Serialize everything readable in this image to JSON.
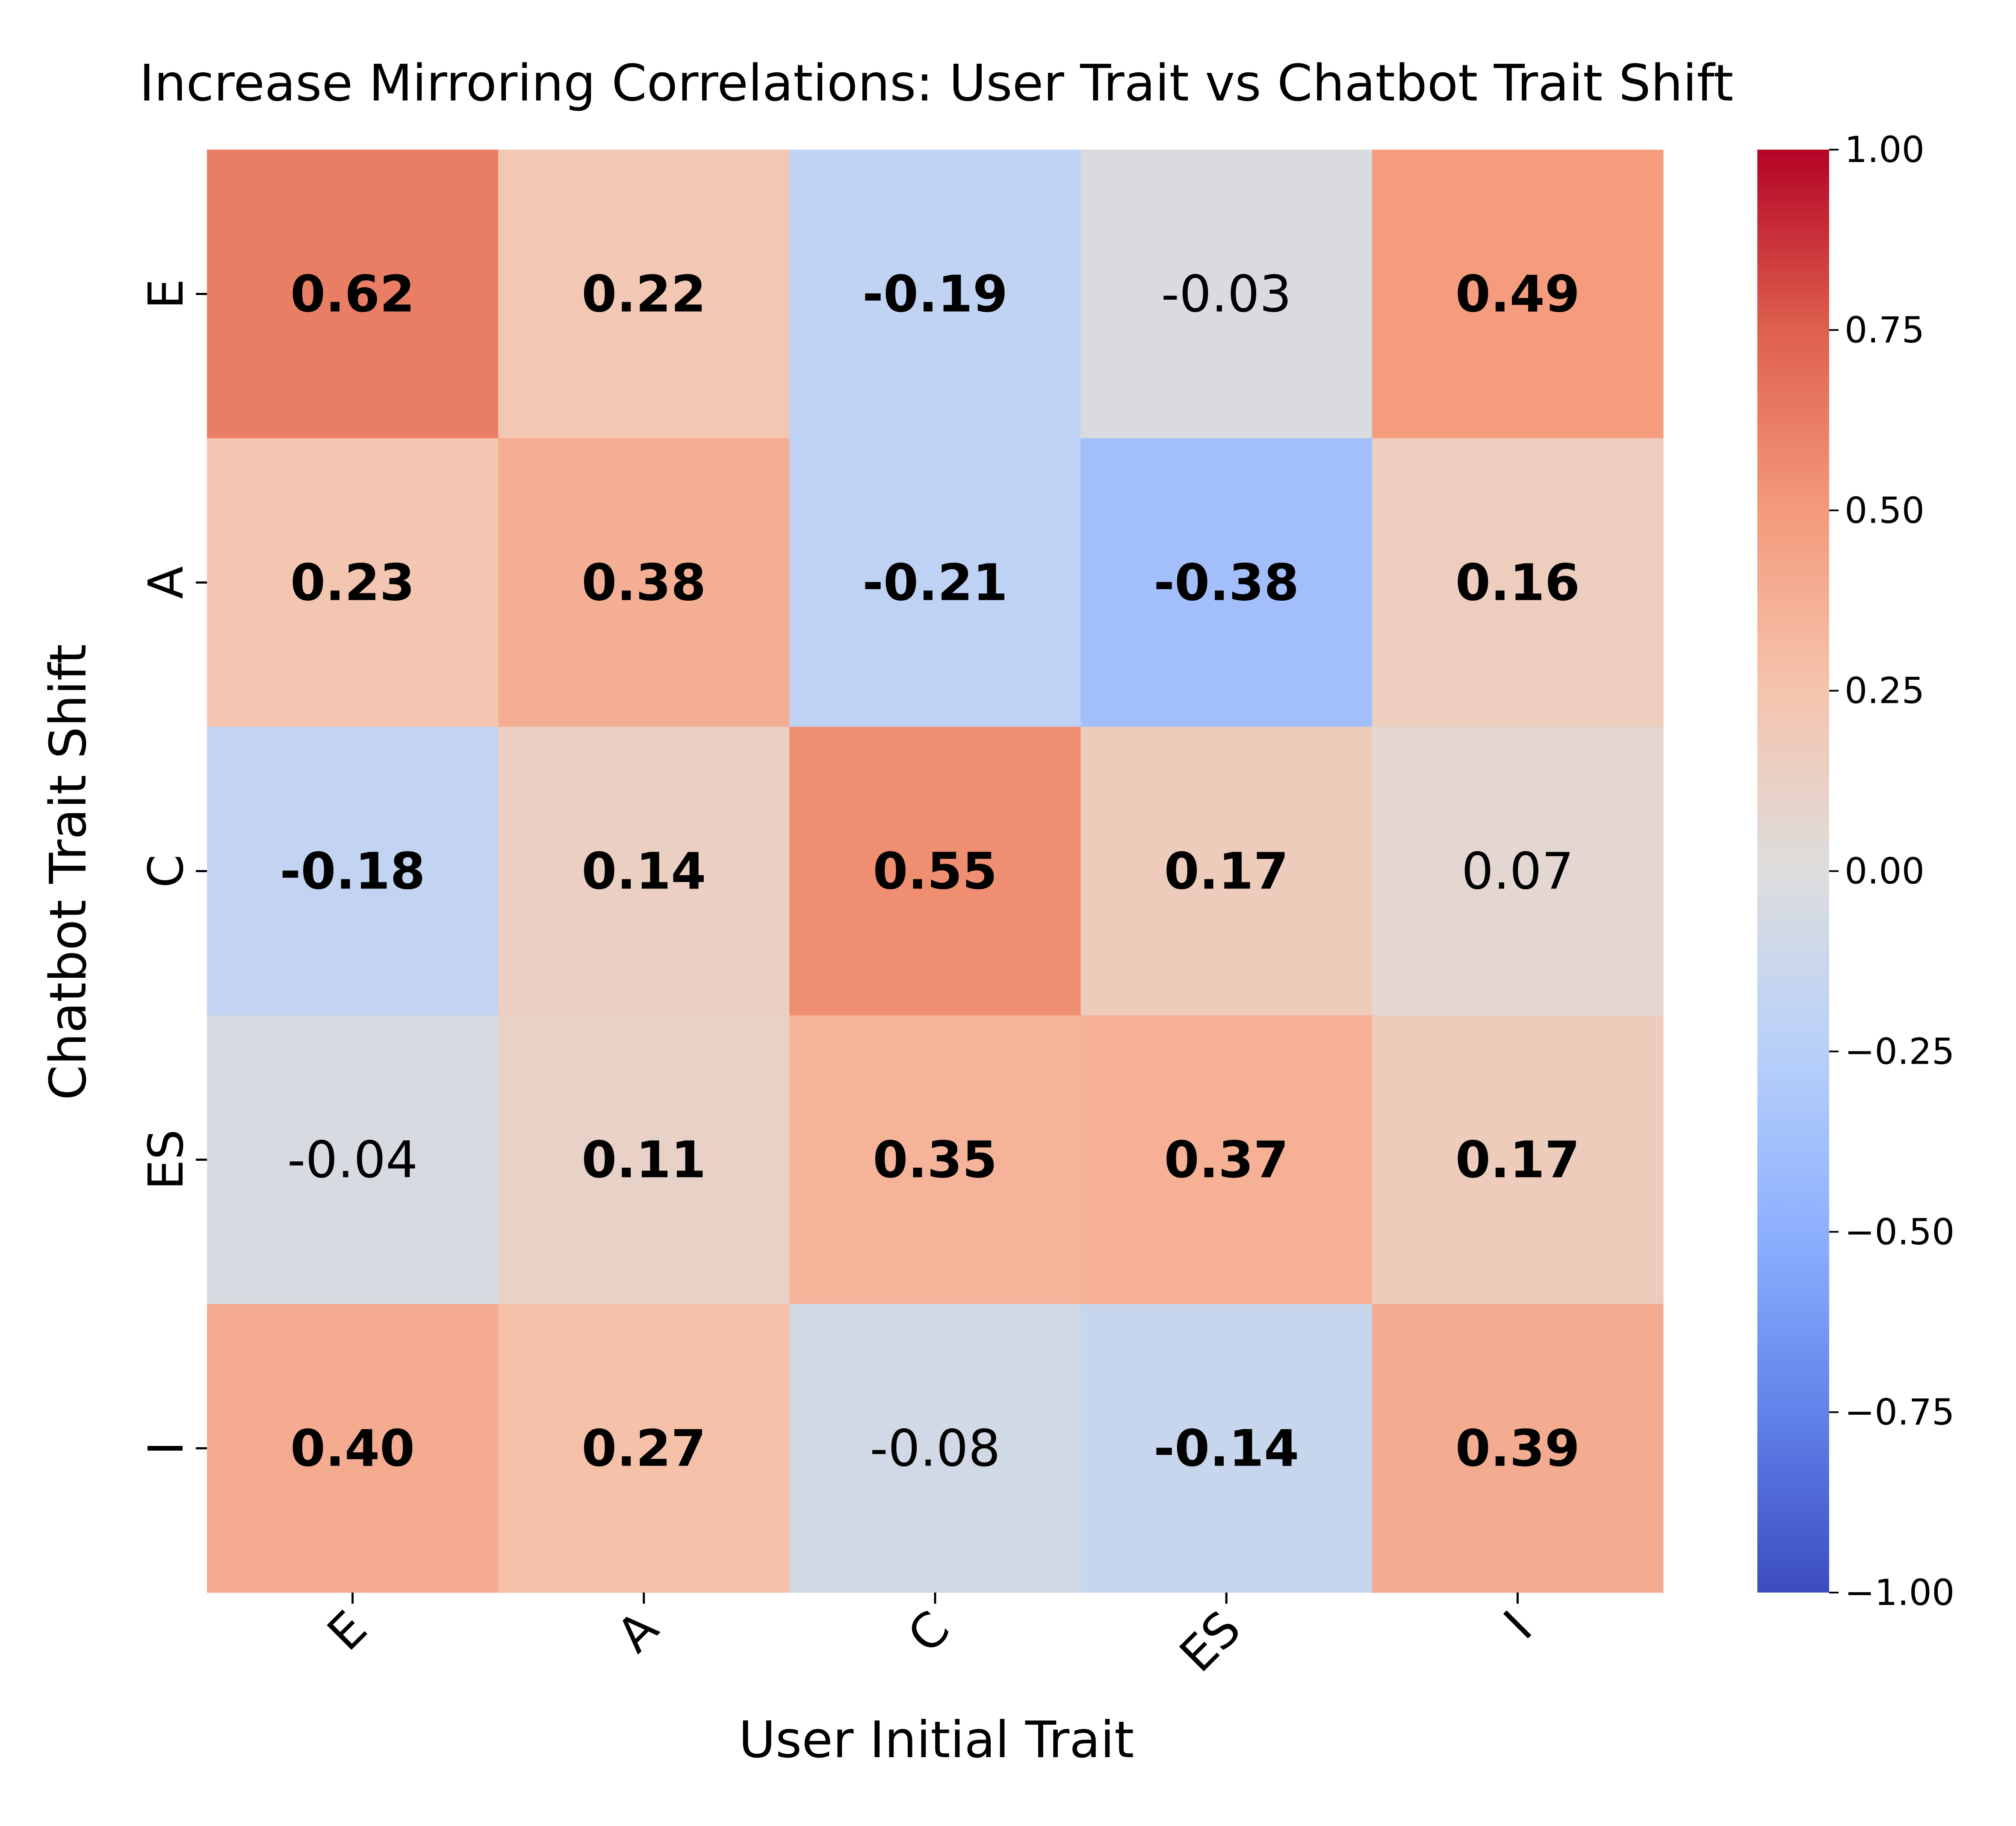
{
  "chart_data": {
    "type": "heatmap",
    "title": "Increase Mirroring Correlations: User Trait vs Chatbot Trait Shift",
    "xlabel": "User Initial Trait",
    "ylabel": "Chatbot Trait Shift",
    "x_categories": [
      "E",
      "A",
      "C",
      "ES",
      "I"
    ],
    "y_categories": [
      "E",
      "A",
      "C",
      "ES",
      "I"
    ],
    "values": [
      [
        0.62,
        0.22,
        -0.19,
        -0.03,
        0.49
      ],
      [
        0.23,
        0.38,
        -0.21,
        -0.38,
        0.16
      ],
      [
        -0.18,
        0.14,
        0.55,
        0.17,
        0.07
      ],
      [
        -0.04,
        0.11,
        0.35,
        0.37,
        0.17
      ],
      [
        0.4,
        0.27,
        -0.08,
        -0.14,
        0.39
      ]
    ],
    "cell_labels": [
      [
        "0.62",
        "0.22",
        "-0.19",
        "-0.03",
        "0.49"
      ],
      [
        "0.23",
        "0.38",
        "-0.21",
        "-0.38",
        "0.16"
      ],
      [
        "-0.18",
        "0.14",
        "0.55",
        "0.17",
        "0.07"
      ],
      [
        "-0.04",
        "0.11",
        "0.35",
        "0.37",
        "0.17"
      ],
      [
        "0.40",
        "0.27",
        "-0.08",
        "-0.14",
        "0.39"
      ]
    ],
    "bold_labels": [
      [
        true,
        true,
        true,
        false,
        true
      ],
      [
        true,
        true,
        true,
        true,
        true
      ],
      [
        true,
        true,
        true,
        true,
        false
      ],
      [
        false,
        true,
        true,
        true,
        true
      ],
      [
        true,
        true,
        false,
        true,
        true
      ]
    ],
    "colormap": "coolwarm",
    "vmin": -1.0,
    "vmax": 1.0,
    "colorbar_ticks": [
      "1.00",
      "0.75",
      "0.50",
      "0.25",
      "0.00",
      "−0.25",
      "−0.50",
      "−0.75",
      "−1.00"
    ],
    "colorbar_tick_values": [
      1.0,
      0.75,
      0.5,
      0.25,
      0.0,
      -0.25,
      -0.5,
      -0.75,
      -1.0
    ]
  }
}
